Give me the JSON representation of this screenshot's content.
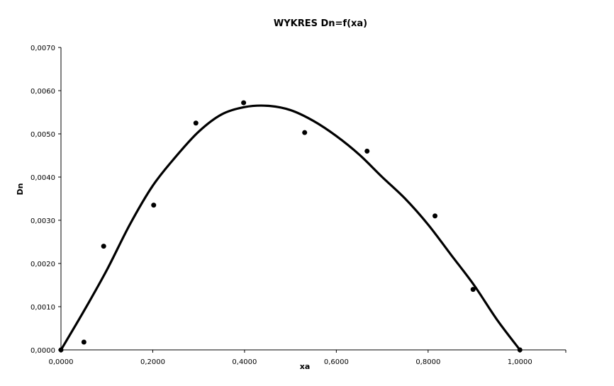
{
  "chart_data": {
    "type": "scatter",
    "title": "WYKRES Dn=f(xa)",
    "xlabel": "xa",
    "ylabel": "Dn",
    "xlim": [
      0,
      1.1
    ],
    "ylim": [
      0,
      0.007
    ],
    "x_ticks": [
      "0,0000",
      "0,2000",
      "0,4000",
      "0,6000",
      "0,8000",
      "1,0000"
    ],
    "x_tick_values": [
      0,
      0.2,
      0.4,
      0.6,
      0.8,
      1.0
    ],
    "y_ticks": [
      "0,0000",
      "0,0010",
      "0,0020",
      "0,0030",
      "0,0040",
      "0,0050",
      "0,0060",
      "0,0070"
    ],
    "y_tick_values": [
      0,
      0.001,
      0.002,
      0.003,
      0.004,
      0.005,
      0.006,
      0.007
    ],
    "grid": false,
    "legend": "none",
    "series": [
      {
        "kind": "points",
        "x": [
          0.0,
          0.05,
          0.093,
          0.202,
          0.294,
          0.398,
          0.531,
          0.667,
          0.815,
          0.898,
          1.0
        ],
        "y": [
          0.0,
          0.00018,
          0.0024,
          0.00335,
          0.00525,
          0.00572,
          0.00503,
          0.0046,
          0.0031,
          0.0014,
          0.0
        ],
        "color": "#000000"
      },
      {
        "kind": "trend-line",
        "x": [
          0.0,
          0.05,
          0.1,
          0.15,
          0.2,
          0.25,
          0.3,
          0.35,
          0.4,
          0.45,
          0.5,
          0.55,
          0.6,
          0.65,
          0.7,
          0.75,
          0.8,
          0.85,
          0.9,
          0.95,
          1.0
        ],
        "y": [
          0.0,
          0.0009,
          0.00185,
          0.0029,
          0.0038,
          0.00447,
          0.00505,
          0.00545,
          0.00562,
          0.00565,
          0.00555,
          0.0053,
          0.00495,
          0.00452,
          0.004,
          0.0035,
          0.0029,
          0.0022,
          0.0015,
          0.0007,
          0.0
        ],
        "color": "#000000"
      }
    ]
  }
}
